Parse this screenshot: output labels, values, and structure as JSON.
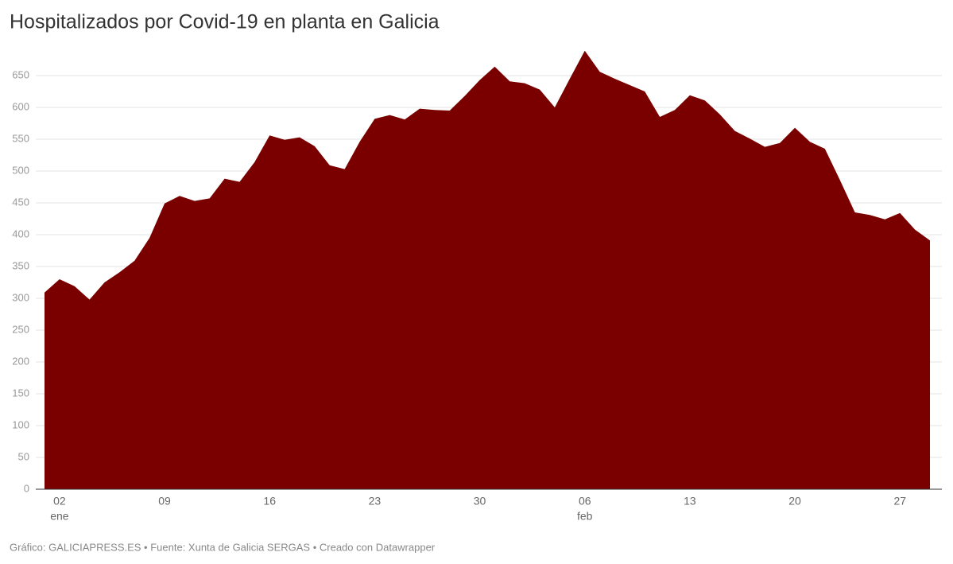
{
  "chart_data": {
    "type": "area",
    "title": "Hospitalizados por Covid-19 en planta en Galicia",
    "footer": "Gráfico: GALICIAPRESS.ES • Fuente: Xunta de Galicia SERGAS • Creado con Datawrapper",
    "color": "#7a0000",
    "categories": [
      null,
      "02",
      null,
      null,
      null,
      null,
      null,
      null,
      "09",
      null,
      null,
      null,
      null,
      null,
      null,
      "16",
      null,
      null,
      null,
      null,
      null,
      null,
      "23",
      null,
      null,
      null,
      null,
      null,
      null,
      "30",
      null,
      null,
      null,
      null,
      null,
      null,
      "06",
      null,
      null,
      null,
      null,
      null,
      null,
      "13",
      null,
      null,
      null,
      null,
      null,
      null,
      "20",
      null,
      null,
      null,
      null,
      null,
      null,
      "27",
      null,
      null
    ],
    "month_labels": [
      null,
      "ene",
      null,
      null,
      null,
      null,
      null,
      null,
      null,
      null,
      null,
      null,
      null,
      null,
      null,
      null,
      null,
      null,
      null,
      null,
      null,
      null,
      null,
      null,
      null,
      null,
      null,
      null,
      null,
      null,
      null,
      null,
      null,
      null,
      null,
      null,
      "feb",
      null,
      null,
      null,
      null,
      null,
      null,
      null,
      null,
      null,
      null,
      null,
      null,
      null,
      null,
      null,
      null,
      null,
      null,
      null,
      null,
      null,
      null,
      null
    ],
    "values": [
      309,
      330,
      319,
      298,
      325,
      341,
      359,
      395,
      449,
      461,
      453,
      457,
      488,
      483,
      514,
      556,
      549,
      553,
      539,
      509,
      503,
      546,
      582,
      588,
      581,
      598,
      596,
      595,
      618,
      643,
      664,
      641,
      638,
      628,
      600,
      645,
      689,
      656,
      645,
      635,
      625,
      585,
      596,
      619,
      611,
      589,
      563,
      551,
      538,
      544,
      568,
      546,
      535,
      486,
      435,
      431,
      424,
      434,
      408,
      391
    ],
    "ylim": [
      0,
      650
    ],
    "yticks": [
      0,
      50,
      100,
      150,
      200,
      250,
      300,
      350,
      400,
      450,
      500,
      550,
      600,
      650
    ],
    "grid": true
  }
}
